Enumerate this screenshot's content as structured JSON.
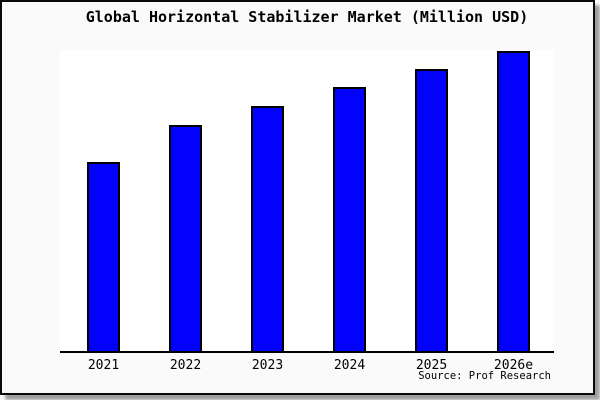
{
  "window": {
    "background_color": "#fafafa",
    "plot_background_color": "#ffffff",
    "border_color": "#0a0a0a"
  },
  "chart_data": {
    "type": "bar",
    "title": "Global Horizontal Stabilizer Market (Million USD)",
    "categories": [
      "2021",
      "2022",
      "2023",
      "2024",
      "2025",
      "2026e"
    ],
    "values": [
      63,
      75.3,
      81.7,
      88,
      94,
      100
    ],
    "y_axis_unlabeled": true,
    "values_note": "no y-axis ticks shown; values are bar heights normalized to 2026e = 100",
    "xlabel": "",
    "ylabel": "",
    "ylim": [
      0,
      100.5
    ],
    "grid": false,
    "legend": null,
    "bar_color": "#0202fc",
    "bar_border_color": "#000000",
    "source": "Source: Prof Research"
  }
}
